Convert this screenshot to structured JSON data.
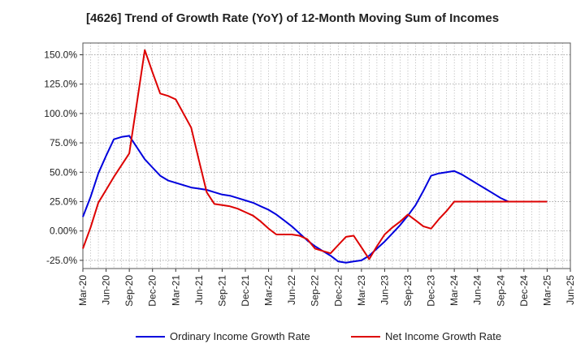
{
  "chart_data": {
    "type": "line",
    "title": "[4626]  Trend of Growth Rate (YoY) of 12-Month Moving Sum of Incomes",
    "xlabel": "",
    "ylabel": "",
    "x": [
      "Mar-20",
      "Apr-20",
      "May-20",
      "Jun-20",
      "Jul-20",
      "Aug-20",
      "Sep-20",
      "Oct-20",
      "Nov-20",
      "Dec-20",
      "Jan-21",
      "Feb-21",
      "Mar-21",
      "Apr-21",
      "May-21",
      "Jun-21",
      "Jul-21",
      "Aug-21",
      "Sep-21",
      "Oct-21",
      "Nov-21",
      "Dec-21",
      "Jan-22",
      "Feb-22",
      "Mar-22",
      "Apr-22",
      "May-22",
      "Jun-22",
      "Jul-22",
      "Aug-22",
      "Sep-22",
      "Oct-22",
      "Nov-22",
      "Dec-22",
      "Jan-23",
      "Feb-23",
      "Mar-23",
      "Apr-23",
      "May-23",
      "Jun-23",
      "Jul-23",
      "Aug-23",
      "Sep-23",
      "Oct-23",
      "Nov-23",
      "Dec-23",
      "Jan-24",
      "Feb-24",
      "Mar-24",
      "Apr-24",
      "May-24",
      "Jun-24",
      "Jul-24",
      "Aug-24",
      "Sep-24",
      "Oct-24",
      "Nov-24",
      "Dec-24",
      "Jan-25",
      "Feb-25",
      "Mar-25"
    ],
    "x_ticks": [
      "Mar-20",
      "Jun-20",
      "Sep-20",
      "Dec-20",
      "Mar-21",
      "Jun-21",
      "Sep-21",
      "Dec-21",
      "Mar-22",
      "Jun-22",
      "Sep-22",
      "Dec-22",
      "Mar-23",
      "Jun-23",
      "Sep-23",
      "Dec-23",
      "Mar-24",
      "Jun-24",
      "Sep-24",
      "Dec-24",
      "Mar-25",
      "Jun-25"
    ],
    "x_range": [
      "Mar-20",
      "Jun-25"
    ],
    "y_ticks": [
      150.0,
      125.0,
      100.0,
      75.0,
      50.0,
      25.0,
      0.0,
      -25.0
    ],
    "y_tick_labels": [
      "150.0%",
      "125.0%",
      "100.0%",
      "75.0%",
      "50.0%",
      "25.0%",
      "0.00%",
      "-25.0%"
    ],
    "ylim": [
      -32,
      160
    ],
    "grid": true,
    "legend_position": "bottom",
    "series": [
      {
        "name": "Ordinary Income Growth Rate",
        "color": "#0000dd",
        "values": [
          12,
          29,
          49,
          64,
          78,
          80,
          81,
          71,
          61,
          54,
          47,
          43,
          41,
          39,
          37,
          36,
          35,
          33,
          31,
          30,
          28,
          26,
          24,
          21,
          18,
          14,
          9,
          4,
          -2,
          -8,
          -13,
          -17,
          -21,
          -26,
          -27,
          -26,
          -25,
          -21,
          -15,
          -9,
          -2,
          5,
          13,
          22,
          34,
          47,
          49,
          50,
          51,
          48,
          44,
          40,
          36,
          32,
          28,
          25,
          25,
          25,
          25,
          25,
          25
        ]
      },
      {
        "name": "Net Income Growth Rate",
        "color": "#dd0000",
        "values": [
          -15,
          3,
          24,
          35,
          46,
          56,
          66,
          110,
          154,
          135,
          117,
          115,
          112,
          100,
          88,
          60,
          33,
          23,
          22,
          21,
          19,
          16,
          13,
          8,
          2,
          -3,
          -3,
          -3,
          -4,
          -7,
          -15,
          -17,
          -19,
          -12,
          -5,
          -4,
          -14,
          -24,
          -13,
          -3,
          3,
          8,
          14,
          9,
          4,
          2,
          10,
          17,
          25,
          25,
          25,
          25,
          25,
          25,
          25,
          25,
          25,
          25,
          25,
          25,
          25
        ]
      }
    ]
  }
}
